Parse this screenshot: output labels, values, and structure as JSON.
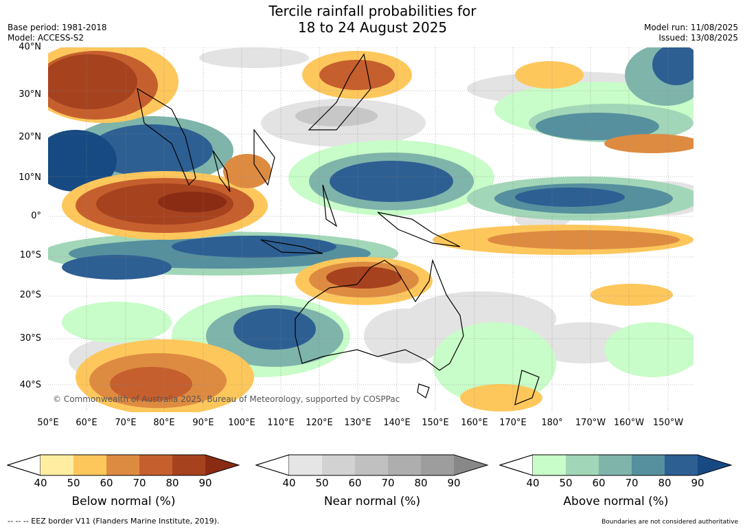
{
  "header": {
    "title_line1": "Tercile rainfall probabilities for",
    "title_line2": "18 to 24 August 2025",
    "base_period": "Base period: 1981-2018",
    "model": "Model: ACCESS-S2",
    "model_run": "Model run: 11/08/2025",
    "issued": "Issued: 13/08/2025"
  },
  "map": {
    "copyright": "© Commonwealth of Australia 2025, Bureau of Meteorology, supported by COSPPac",
    "lat_labels": [
      "40°N",
      "30°N",
      "20°N",
      "10°N",
      "0°",
      "10°S",
      "20°S",
      "30°S",
      "40°S"
    ],
    "lon_labels": [
      "50°E",
      "60°E",
      "70°E",
      "80°E",
      "90°E",
      "100°E",
      "110°E",
      "120°E",
      "130°E",
      "140°E",
      "150°E",
      "160°E",
      "170°E",
      "180°",
      "170°W",
      "160°W",
      "150°W"
    ]
  },
  "colorbars": [
    {
      "title": "Below normal (%)",
      "ticks": [
        "40",
        "50",
        "60",
        "70",
        "80",
        "90"
      ],
      "colors": [
        "#ffeea1",
        "#fec75c",
        "#de8b42",
        "#c65f2e",
        "#a7421f",
        "#8a2c14"
      ]
    },
    {
      "title": "Near normal (%)",
      "ticks": [
        "40",
        "50",
        "60",
        "70",
        "80",
        "90"
      ],
      "colors": [
        "#e5e5e5",
        "#d2d2d2",
        "#c0c0c0",
        "#aeaeae",
        "#9d9d9d",
        "#888888"
      ]
    },
    {
      "title": "Above normal (%)",
      "ticks": [
        "40",
        "50",
        "60",
        "70",
        "80",
        "90"
      ],
      "colors": [
        "#c8fcc8",
        "#a2d6b8",
        "#7fb4ab",
        "#56909e",
        "#2d5f93",
        "#174a82"
      ]
    }
  ],
  "footer": {
    "eez_note": "--  --  -- EEZ border V11 (Flanders Marine Institute, 2019).",
    "boundary_note": "Boundaries are not considered authoritative"
  }
}
